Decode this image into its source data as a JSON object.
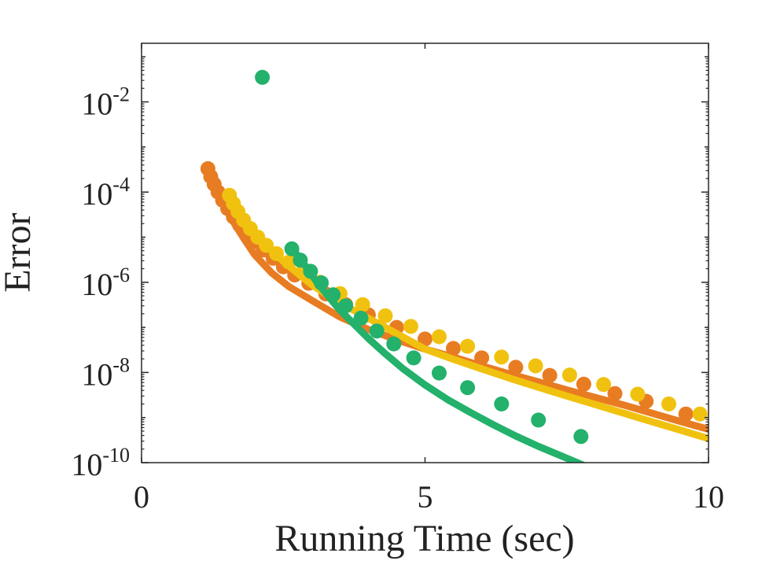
{
  "chart_data": {
    "type": "line",
    "title": "",
    "xlabel": "Running Time (sec)",
    "ylabel": "Error",
    "xlim": [
      0,
      10
    ],
    "ylim_log10": [
      -10,
      -0.7
    ],
    "y_scale": "log",
    "grid": false,
    "legend": "none",
    "x_ticks": [
      {
        "value": 0,
        "label": "0"
      },
      {
        "value": 5,
        "label": "5"
      },
      {
        "value": 10,
        "label": "10"
      }
    ],
    "y_ticks": [
      {
        "exp": -2,
        "base": "10",
        "sup": "-2"
      },
      {
        "exp": -4,
        "base": "10",
        "sup": "-4"
      },
      {
        "exp": -6,
        "base": "10",
        "sup": "-6"
      },
      {
        "exp": -8,
        "base": "10",
        "sup": "-8"
      },
      {
        "exp": -10,
        "base": "10",
        "sup": "-10"
      }
    ],
    "series": [
      {
        "color": "#e87c22",
        "line_x": [
          1.17,
          1.25,
          1.4,
          1.6,
          1.8,
          2.0,
          2.3,
          2.6,
          3.0,
          3.5,
          4.0,
          4.5,
          5.0,
          5.5,
          6.0,
          6.5,
          7.0,
          7.5,
          8.0,
          8.5,
          9.0,
          9.5,
          10.0
        ],
        "line_y": [
          0.00032,
          0.00016,
          7e-05,
          2.4e-05,
          9.5e-06,
          4e-06,
          1.6e-06,
          8e-07,
          4e-07,
          1.7e-07,
          9e-08,
          5.3e-08,
          3.3e-08,
          2.2e-08,
          1.4e-08,
          9.2e-09,
          6.2e-09,
          4.1e-09,
          2.8e-09,
          1.9e-09,
          1.25e-09,
          8.2e-10,
          5.5e-10
        ],
        "markers_x": [
          1.17,
          1.22,
          1.28,
          1.35,
          1.43,
          1.52,
          1.62,
          1.73,
          1.86,
          2.0,
          2.15,
          2.32,
          2.5,
          2.7,
          2.95,
          3.25,
          3.6,
          4.0,
          4.5,
          5.0,
          5.5,
          6.0,
          6.6,
          7.2,
          7.8,
          8.35,
          8.9,
          9.6
        ],
        "markers_y": [
          0.00033,
          0.00022,
          0.00015,
          0.0001,
          6.6e-05,
          4.3e-05,
          2.8e-05,
          1.85e-05,
          1.2e-05,
          8e-06,
          5.2e-06,
          3.4e-06,
          2.2e-06,
          1.45e-06,
          9.5e-07,
          5.5e-07,
          3.2e-07,
          1.9e-07,
          1e-07,
          5.5e-08,
          3.4e-08,
          2.1e-08,
          1.3e-08,
          8.6e-09,
          5.5e-09,
          3.4e-09,
          2.3e-09,
          1.2e-09
        ]
      },
      {
        "color": "#f0c20f",
        "line_x": [
          1.5,
          1.8,
          2.1,
          2.5,
          3.0,
          3.5,
          4.0,
          4.5,
          5.0,
          5.5,
          6.0,
          6.5,
          7.0,
          7.5,
          8.0,
          8.5,
          9.0,
          9.5,
          10.0
        ],
        "line_y": [
          8e-05,
          2.4e-05,
          8.8e-06,
          2.9e-06,
          8.8e-07,
          3.5e-07,
          1.6e-07,
          7.3e-08,
          3.3e-08,
          1.96e-08,
          1.2e-08,
          7.4e-09,
          4.7e-09,
          3e-09,
          1.95e-09,
          1.25e-09,
          8.1e-10,
          5.3e-10,
          3.4e-10
        ],
        "markers_x": [
          1.55,
          1.62,
          1.7,
          1.8,
          1.92,
          2.05,
          2.2,
          2.38,
          2.6,
          2.85,
          3.15,
          3.5,
          3.9,
          4.3,
          4.75,
          5.25,
          5.75,
          6.35,
          6.95,
          7.55,
          8.15,
          8.75,
          9.3,
          9.85
        ],
        "markers_y": [
          8.5e-05,
          5.6e-05,
          3.7e-05,
          2.4e-05,
          1.55e-05,
          1e-05,
          6.6e-06,
          4.3e-06,
          2.8e-06,
          1.7e-06,
          1e-06,
          5.6e-07,
          3.2e-07,
          1.8e-07,
          1.05e-07,
          6.2e-08,
          3.8e-08,
          2.2e-08,
          1.4e-08,
          8.8e-09,
          5.4e-09,
          3.3e-09,
          2e-09,
          1.2e-09
        ]
      },
      {
        "color": "#23b16b",
        "line_x": [
          2.68,
          2.9,
          3.1,
          3.3,
          3.5,
          3.7,
          4.0,
          4.3,
          4.6,
          5.0,
          5.4,
          5.8,
          6.2,
          6.6,
          7.0,
          7.5,
          8.0,
          8.3
        ],
        "line_y": [
          5.2e-06,
          2.2e-06,
          9.8e-07,
          4.8e-07,
          2.4e-07,
          1.35e-07,
          5.7e-08,
          2.6e-08,
          1.24e-08,
          5.3e-09,
          2.5e-09,
          1.3e-09,
          7e-10,
          3.9e-10,
          2.3e-10,
          1.25e-10,
          6.8e-11,
          4.6e-11
        ],
        "markers_x": [
          2.65,
          2.8,
          2.98,
          3.17,
          3.38,
          3.6,
          3.87,
          4.15,
          4.45,
          4.8,
          5.25,
          5.75,
          6.35,
          7.0,
          7.75
        ],
        "markers_y": [
          5.5e-06,
          3.1e-06,
          1.75e-06,
          9.7e-07,
          5.3e-07,
          3e-07,
          1.6e-07,
          8.3e-08,
          4.3e-08,
          2.1e-08,
          9.7e-09,
          4.6e-09,
          2e-09,
          8.8e-10,
          3.8e-10
        ]
      },
      {
        "color": "#23b16b",
        "markers_x": [
          2.13
        ],
        "markers_y": [
          0.035
        ]
      }
    ]
  }
}
